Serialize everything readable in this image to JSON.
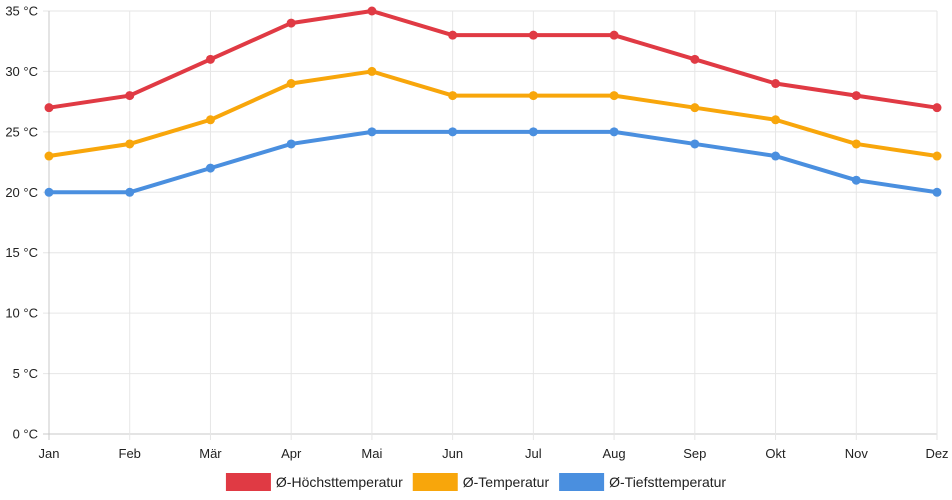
{
  "chart_data": {
    "type": "line",
    "title": "",
    "xlabel": "",
    "ylabel": "",
    "categories": [
      "Jan",
      "Feb",
      "Mär",
      "Apr",
      "Mai",
      "Jun",
      "Jul",
      "Aug",
      "Sep",
      "Okt",
      "Nov",
      "Dez"
    ],
    "ylim": [
      0,
      35
    ],
    "yticks": [
      0,
      5,
      10,
      15,
      20,
      25,
      30,
      35
    ],
    "y_unit": " °C",
    "grid": true,
    "legend_position": "bottom-center",
    "series": [
      {
        "name": "Ø-Höchsttemperatur",
        "color": "#e03a44",
        "values": [
          27,
          28,
          31,
          34,
          35,
          33,
          33,
          33,
          31,
          29,
          28,
          27
        ]
      },
      {
        "name": "Ø-Temperatur",
        "color": "#f8a60b",
        "values": [
          23,
          24,
          26,
          29,
          30,
          28,
          28,
          28,
          27,
          26,
          24,
          23
        ]
      },
      {
        "name": "Ø-Tiefsttemperatur",
        "color": "#4a8fdf",
        "values": [
          20,
          20,
          22,
          24,
          25,
          25,
          25,
          25,
          24,
          23,
          21,
          20
        ]
      }
    ]
  }
}
